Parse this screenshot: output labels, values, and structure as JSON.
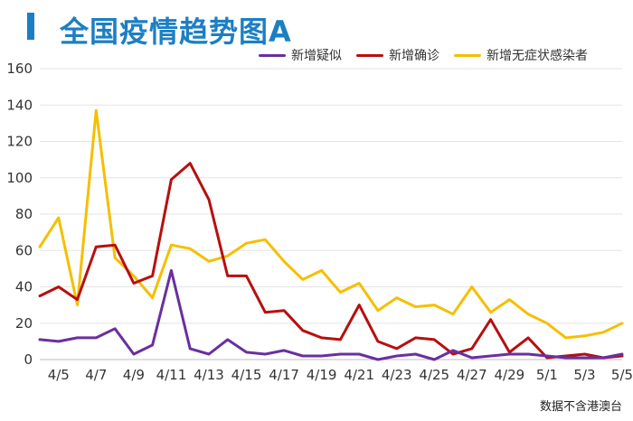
{
  "title": "全国疫情趋势图A",
  "source": "数据不含港澳台",
  "colors": {
    "title": "#1c7fc4",
    "suspected": "#6a2fa0",
    "confirmed": "#b80f0f",
    "asymptomatic": "#f5bf00"
  },
  "chart_data": {
    "type": "line",
    "title": "全国疫情趋势图A",
    "xlabel": "",
    "ylabel": "",
    "ylim": [
      0,
      160
    ],
    "yticks": [
      0,
      20,
      40,
      60,
      80,
      100,
      120,
      140,
      160
    ],
    "grid": true,
    "legend_position": "top-right",
    "x": [
      "4/4",
      "4/5",
      "4/6",
      "4/7",
      "4/8",
      "4/9",
      "4/10",
      "4/11",
      "4/12",
      "4/13",
      "4/14",
      "4/15",
      "4/16",
      "4/17",
      "4/18",
      "4/19",
      "4/20",
      "4/21",
      "4/22",
      "4/23",
      "4/24",
      "4/25",
      "4/26",
      "4/27",
      "4/28",
      "4/29",
      "4/30",
      "5/1",
      "5/2",
      "5/3",
      "5/4",
      "5/5"
    ],
    "xtick_labels": [
      "4/5",
      "4/7",
      "4/9",
      "4/11",
      "4/13",
      "4/15",
      "4/17",
      "4/19",
      "4/21",
      "4/23",
      "4/25",
      "4/27",
      "4/29",
      "5/1",
      "5/3",
      "5/5"
    ],
    "series": [
      {
        "name": "新增疑似",
        "color": "#6a2fa0",
        "values": [
          11,
          10,
          12,
          12,
          17,
          3,
          8,
          49,
          6,
          3,
          11,
          4,
          3,
          5,
          2,
          2,
          3,
          3,
          0,
          2,
          3,
          0,
          5,
          1,
          2,
          3,
          3,
          2,
          1,
          1,
          1,
          3
        ]
      },
      {
        "name": "新增确诊",
        "color": "#b80f0f",
        "values": [
          35,
          40,
          33,
          62,
          63,
          42,
          46,
          99,
          108,
          88,
          46,
          46,
          26,
          27,
          16,
          12,
          11,
          30,
          10,
          6,
          12,
          11,
          3,
          6,
          22,
          4,
          12,
          1,
          2,
          3,
          1,
          2
        ]
      },
      {
        "name": "新增无症状感染者",
        "color": "#f5bf00",
        "values": [
          62,
          78,
          30,
          137,
          56,
          46,
          34,
          63,
          61,
          54,
          57,
          64,
          66,
          54,
          44,
          49,
          37,
          42,
          27,
          34,
          29,
          30,
          25,
          40,
          26,
          33,
          25,
          20,
          12,
          13,
          15,
          20
        ]
      }
    ]
  }
}
